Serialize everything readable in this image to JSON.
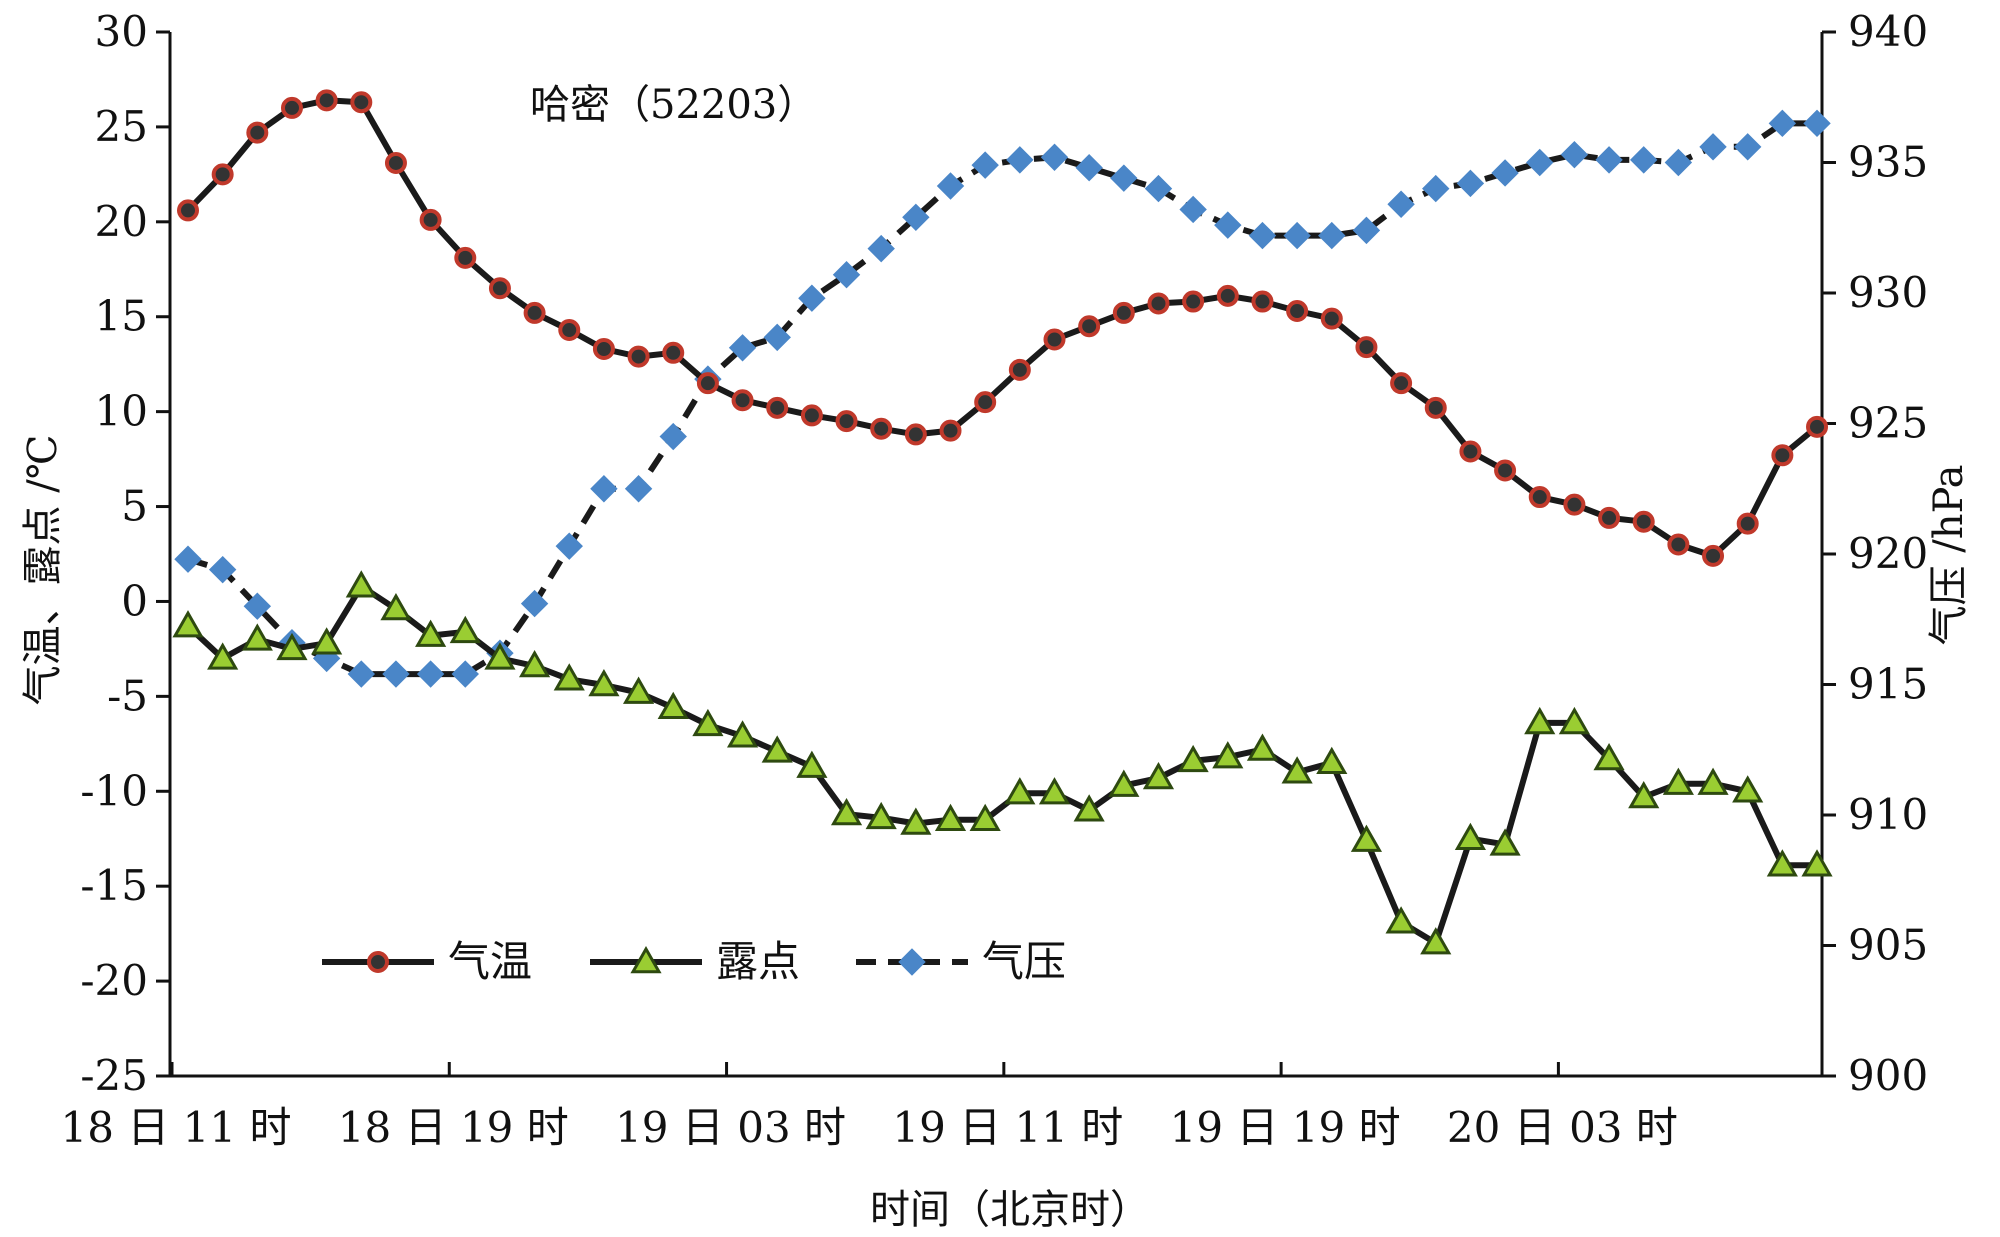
{
  "chart_data": {
    "type": "line",
    "annotation": "哈密（52203）",
    "xlabel": "时间（北京时）",
    "y_left_label": "气温、露点 /℃",
    "y_right_label": "气压 /hPa",
    "y_left_lim": [
      -25,
      30
    ],
    "y_left_ticks": [
      30,
      25,
      20,
      15,
      10,
      5,
      0,
      -5,
      -10,
      -15,
      -20,
      -25
    ],
    "y_right_lim": [
      900,
      940
    ],
    "y_right_ticks": [
      940,
      935,
      930,
      925,
      920,
      915,
      910,
      905,
      900
    ],
    "x_count": 48,
    "x_tick_labels": [
      {
        "index": 0,
        "label": "18 日 11 时"
      },
      {
        "index": 8,
        "label": "18 日 19 时"
      },
      {
        "index": 16,
        "label": "19 日 03 时"
      },
      {
        "index": 24,
        "label": "19 日 11 时"
      },
      {
        "index": 32,
        "label": "19 日 19 时"
      },
      {
        "index": 40,
        "label": "20 日 03 时"
      }
    ],
    "grid": false,
    "legend_position": "bottom-left",
    "series": [
      {
        "name": "气温",
        "axis": "left",
        "line_color": "#1a1a1a",
        "line_style": "solid",
        "marker": "circle",
        "marker_fill": "#333333",
        "marker_edge": "#c0392b",
        "values": [
          20.6,
          22.5,
          24.7,
          26.0,
          26.4,
          26.3,
          23.1,
          20.1,
          18.1,
          16.5,
          15.2,
          14.3,
          13.3,
          12.9,
          13.1,
          11.5,
          10.6,
          10.2,
          9.8,
          9.5,
          9.1,
          8.8,
          9.0,
          10.5,
          12.2,
          13.8,
          14.5,
          15.2,
          15.7,
          15.8,
          16.1,
          15.8,
          15.3,
          14.9,
          13.4,
          11.5,
          10.2,
          7.9,
          6.9,
          5.5,
          5.1,
          4.4,
          4.2,
          3.0,
          2.4,
          4.1,
          7.7,
          9.2
        ]
      },
      {
        "name": "露点",
        "axis": "left",
        "line_color": "#1a1a1a",
        "line_style": "solid",
        "marker": "triangle",
        "marker_fill": "#9acd32",
        "marker_edge": "#2e4a10",
        "values": [
          -1.3,
          -3.0,
          -2.0,
          -2.5,
          -2.2,
          0.8,
          -0.4,
          -1.8,
          -1.6,
          -3.0,
          -3.4,
          -4.1,
          -4.4,
          -4.8,
          -5.6,
          -6.5,
          -7.1,
          -7.9,
          -8.7,
          -11.2,
          -11.4,
          -11.7,
          -11.5,
          -11.5,
          -10.1,
          -10.1,
          -11.0,
          -9.7,
          -9.3,
          -8.4,
          -8.2,
          -7.8,
          -9.0,
          -8.5,
          -12.6,
          -16.9,
          -18.0,
          -12.5,
          -12.8,
          -6.4,
          -6.4,
          -8.3,
          -10.3,
          -9.6,
          -9.6,
          -10.0,
          -13.9,
          -13.9
        ]
      },
      {
        "name": "气压",
        "axis": "right",
        "line_color": "#1a1a1a",
        "line_style": "dashed",
        "marker": "diamond",
        "marker_fill": "#4a86c8",
        "marker_edge": "#4a86c8",
        "values": [
          919.8,
          919.4,
          918.0,
          916.6,
          916.0,
          915.4,
          915.4,
          915.4,
          915.4,
          916.2,
          918.1,
          920.3,
          922.5,
          922.5,
          924.5,
          926.7,
          927.9,
          928.3,
          929.8,
          930.7,
          931.7,
          932.9,
          934.1,
          934.9,
          935.1,
          935.2,
          934.8,
          934.4,
          934.0,
          933.2,
          932.6,
          932.2,
          932.2,
          932.2,
          932.4,
          933.4,
          934.0,
          934.2,
          934.6,
          935.0,
          935.3,
          935.1,
          935.1,
          935.0,
          935.6,
          935.6,
          936.5,
          936.5
        ]
      }
    ]
  }
}
